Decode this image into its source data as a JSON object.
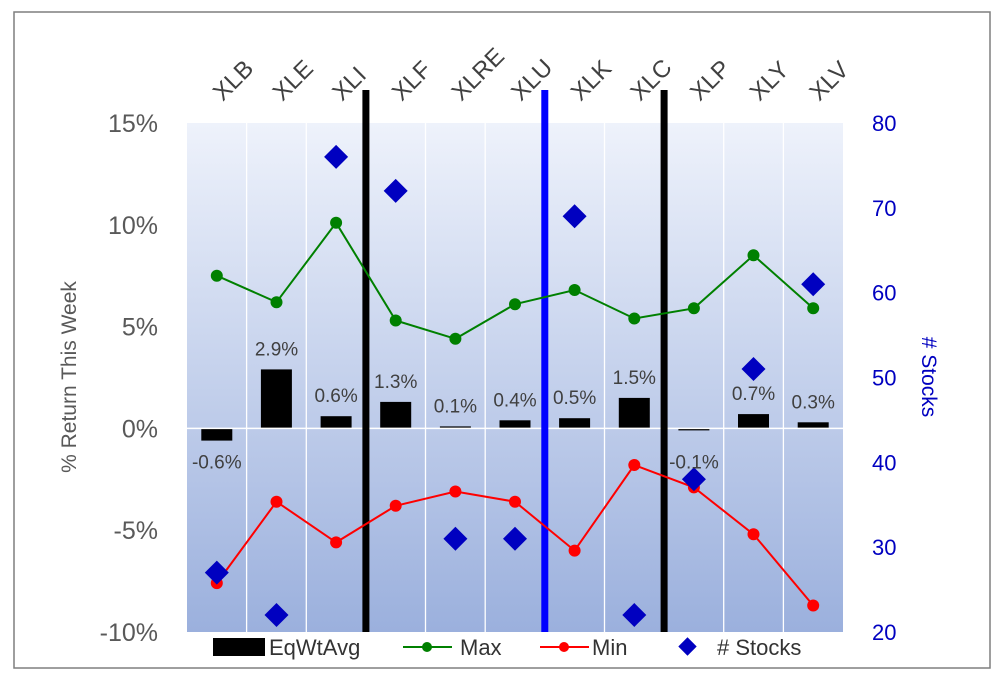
{
  "chart_data": {
    "type": "bar",
    "categories": [
      "XLB",
      "XLE",
      "XLI",
      "XLF",
      "XLRE",
      "XLU",
      "XLK",
      "XLC",
      "XLP",
      "XLY",
      "XLV"
    ],
    "ylabel": "% Return This Week",
    "y2label": "# Stocks",
    "ylim": [
      -10,
      15
    ],
    "y2lim": [
      20,
      80
    ],
    "y_ticks": [
      "-10%",
      "-5%",
      "0%",
      "5%",
      "10%",
      "15%"
    ],
    "y2_ticks": [
      "20",
      "30",
      "40",
      "50",
      "60",
      "70",
      "80"
    ],
    "grid": "vertical",
    "legend": "bottom",
    "series": [
      {
        "name": "EqWtAvg",
        "type": "bar",
        "axis": "left",
        "color": "#000000",
        "values": [
          -0.6,
          2.9,
          0.6,
          1.3,
          0.1,
          0.4,
          0.5,
          1.5,
          -0.1,
          0.7,
          0.3
        ],
        "labels": [
          "-0.6%",
          "2.9%",
          "0.6%",
          "1.3%",
          "0.1%",
          "0.4%",
          "0.5%",
          "1.5%",
          "-0.1%",
          "0.7%",
          "0.3%"
        ]
      },
      {
        "name": "Max",
        "type": "line",
        "axis": "left",
        "color": "#008000",
        "values": [
          7.5,
          6.2,
          10.1,
          5.3,
          4.4,
          6.1,
          6.8,
          5.4,
          5.9,
          8.5,
          5.9
        ]
      },
      {
        "name": "Min",
        "type": "line",
        "axis": "left",
        "color": "#ff0000",
        "values": [
          -7.6,
          -3.6,
          -5.6,
          -3.8,
          -3.1,
          -3.6,
          -6.0,
          -1.8,
          -2.9,
          -5.2,
          -8.7
        ]
      },
      {
        "name": "# Stocks",
        "type": "scatter",
        "axis": "right",
        "color": "#0000c0",
        "values": [
          27,
          22,
          76,
          72,
          31,
          31,
          69,
          22,
          38,
          51,
          61
        ]
      }
    ],
    "separators": [
      {
        "between": [
          2,
          3
        ],
        "color": "#000000"
      },
      {
        "between": [
          5,
          6
        ],
        "color": "#0000ff"
      },
      {
        "between": [
          7,
          8
        ],
        "color": "#000000"
      }
    ]
  }
}
